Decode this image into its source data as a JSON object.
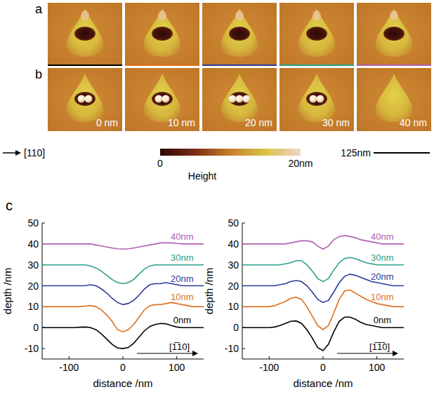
{
  "images": {
    "row_a_label": "a",
    "row_b_label": "b",
    "depth_labels": [
      "0 nm",
      "10 nm",
      "20 nm",
      "30 nm",
      "40 nm"
    ],
    "particles": [
      2,
      2,
      3,
      2,
      0
    ]
  },
  "direction": "[110]",
  "colorbar": {
    "range": [
      0,
      20
    ],
    "ticks": [
      {
        "value": 0,
        "label": "0"
      },
      {
        "value": 20,
        "label": "20nm"
      }
    ],
    "label": "Height"
  },
  "scale_bar": "125nm",
  "panel_c_label": "c",
  "chart_data": [
    {
      "type": "line",
      "x_label": "distance /nm",
      "y_label": "depth /nm",
      "annotation": "[1̅10]",
      "xlim": [
        -150,
        150
      ],
      "ylim": [
        -15,
        50
      ],
      "xticks": [
        -100,
        0,
        100
      ],
      "yticks": [
        -10,
        0,
        10,
        20,
        30,
        40,
        50
      ],
      "x": [
        -150,
        -140,
        -130,
        -120,
        -110,
        -100,
        -90,
        -80,
        -70,
        -60,
        -50,
        -40,
        -30,
        -20,
        -10,
        0,
        10,
        20,
        30,
        40,
        50,
        60,
        70,
        80,
        90,
        100,
        110,
        120,
        130,
        140,
        150
      ],
      "series": [
        {
          "name": "0nm",
          "color": "#000000",
          "values": [
            0,
            0,
            0,
            0,
            0,
            0,
            0,
            0.2,
            0.3,
            0,
            -1,
            -3,
            -5.5,
            -8,
            -9.7,
            -10,
            -9.5,
            -7.5,
            -4.5,
            -1.5,
            0.5,
            1.5,
            2,
            1.8,
            1,
            0.3,
            0,
            0,
            0,
            0,
            0
          ]
        },
        {
          "name": "10nm",
          "color": "#e07020",
          "values": [
            10,
            10,
            10,
            10,
            10,
            10,
            10,
            10,
            10.3,
            10.5,
            10,
            8.5,
            6,
            3,
            -1,
            -2,
            -1,
            1.5,
            5,
            8.5,
            10.5,
            11,
            11,
            11.5,
            12,
            11.5,
            11,
            10.5,
            10,
            10,
            10
          ]
        },
        {
          "name": "20nm",
          "color": "#2a3a9a",
          "values": [
            20,
            20,
            20,
            20,
            20,
            20,
            20,
            20,
            20,
            20.5,
            20,
            18.5,
            16.5,
            14,
            12,
            11,
            11.5,
            13,
            15.5,
            18.5,
            20.5,
            21,
            21,
            21.5,
            21,
            20.5,
            20,
            20,
            20,
            20,
            20
          ]
        },
        {
          "name": "30nm",
          "color": "#2aa08a",
          "values": [
            30,
            30,
            30,
            30,
            30,
            30,
            30,
            30,
            30,
            29.5,
            28.5,
            27,
            25,
            23,
            21.5,
            21,
            21.5,
            23,
            25.5,
            28,
            29.5,
            30,
            30,
            30,
            30,
            30,
            30,
            30,
            30,
            30,
            30
          ]
        },
        {
          "name": "40nm",
          "color": "#b060b0",
          "values": [
            40,
            40,
            40,
            40,
            40,
            40,
            40,
            40,
            40,
            40,
            39.5,
            39,
            38.5,
            38,
            37.7,
            37.5,
            37.7,
            38,
            38.5,
            39,
            39.5,
            40,
            40.5,
            40.5,
            40.5,
            40.3,
            40,
            40,
            40,
            40,
            40
          ]
        }
      ]
    },
    {
      "type": "line",
      "x_label": "distance /nm",
      "y_label": "depth /nm",
      "annotation": "[1̅1̅0]",
      "xlim": [
        -150,
        150
      ],
      "ylim": [
        -15,
        50
      ],
      "xticks": [
        -100,
        0,
        100
      ],
      "yticks": [
        -10,
        0,
        10,
        20,
        30,
        40,
        50
      ],
      "x": [
        -150,
        -140,
        -130,
        -120,
        -110,
        -100,
        -90,
        -80,
        -70,
        -60,
        -50,
        -40,
        -30,
        -20,
        -10,
        0,
        10,
        20,
        30,
        40,
        50,
        60,
        70,
        80,
        90,
        100,
        110,
        120,
        130,
        140,
        150
      ],
      "series": [
        {
          "name": "0nm",
          "color": "#000000",
          "values": [
            0,
            0,
            0,
            0,
            0,
            0,
            0.3,
            1,
            2,
            3,
            3.2,
            2,
            -1,
            -5,
            -9.5,
            -11,
            -8,
            -2,
            3,
            5,
            5,
            4,
            2.5,
            1.5,
            1,
            0.5,
            0,
            0,
            0,
            0,
            0
          ]
        },
        {
          "name": "10nm",
          "color": "#e07020",
          "values": [
            10,
            10,
            10,
            10,
            10,
            10,
            10.5,
            11.5,
            12.5,
            14,
            14.5,
            13.5,
            10,
            5.5,
            1,
            -1,
            1,
            7,
            13.5,
            17.5,
            18,
            16.5,
            15,
            13.5,
            12.5,
            11.5,
            11,
            10.5,
            10,
            10,
            10
          ]
        },
        {
          "name": "20nm",
          "color": "#2a3a9a",
          "values": [
            20,
            20,
            20,
            20,
            20,
            20,
            20,
            20.5,
            21,
            22,
            22.5,
            22,
            20,
            17,
            13.5,
            12,
            13,
            17,
            21.5,
            24.5,
            25.5,
            25,
            24,
            23,
            22,
            21.5,
            21,
            20.5,
            20,
            20,
            20
          ]
        },
        {
          "name": "30nm",
          "color": "#2aa08a",
          "values": [
            30,
            30,
            30,
            30,
            30,
            30,
            30,
            30,
            30.5,
            31,
            32,
            32,
            30,
            27,
            23.5,
            22,
            23.5,
            27.5,
            31,
            33,
            33.5,
            33,
            32,
            31,
            30.5,
            30,
            30,
            30,
            30,
            30,
            30
          ]
        },
        {
          "name": "40nm",
          "color": "#b060b0",
          "values": [
            40,
            40,
            40,
            40,
            40,
            40,
            40,
            40,
            40,
            40.5,
            41,
            41.5,
            41.5,
            41,
            39,
            37.5,
            39,
            42,
            43.5,
            44,
            43.5,
            43,
            42,
            41.5,
            41,
            40.5,
            40,
            40,
            40,
            40,
            40
          ]
        }
      ]
    }
  ]
}
